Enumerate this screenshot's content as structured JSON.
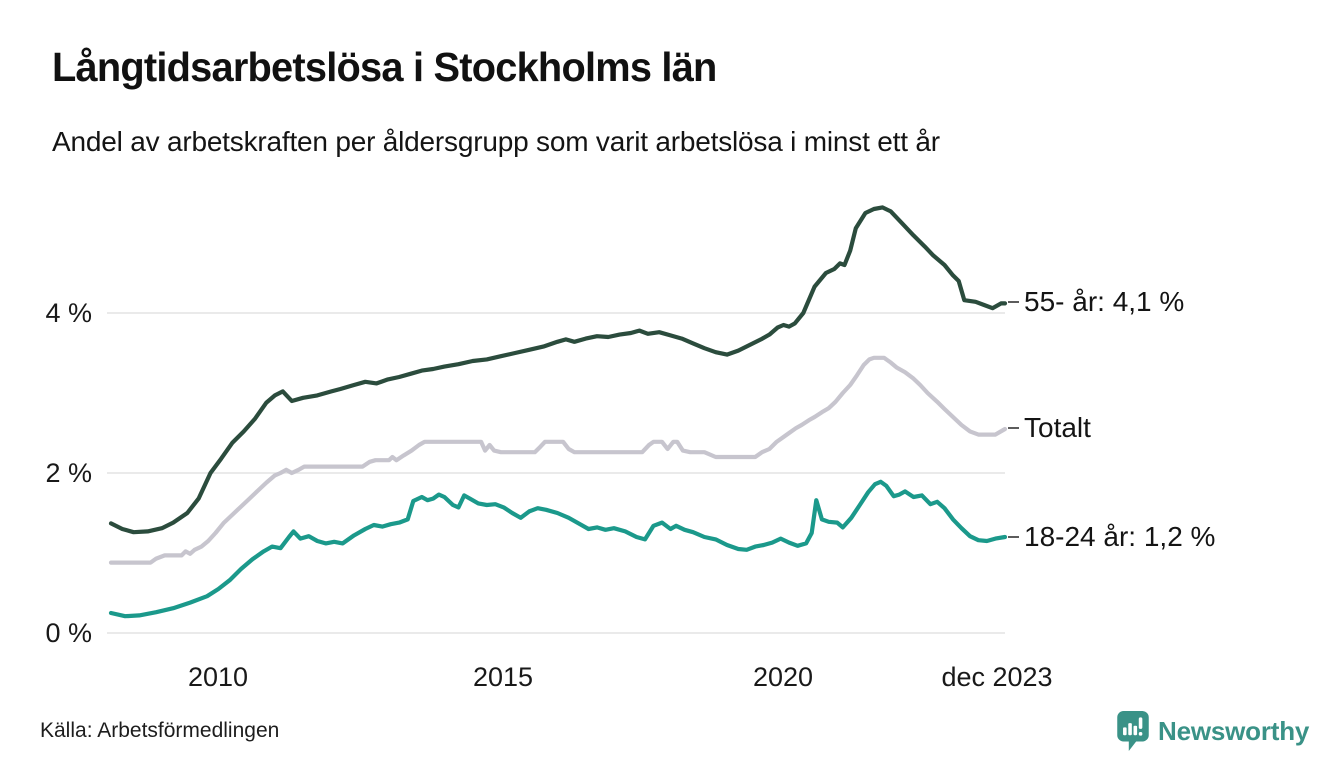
{
  "header": {
    "title": "Långtidsarbetslösa i Stockholms län",
    "subtitle": "Andel av arbetskraften per åldersgrupp som varit arbetslösa i minst ett år"
  },
  "footer": {
    "source": "Källa: Arbetsförmedlingen",
    "brand_name": "Newsworthy"
  },
  "colors": {
    "series_55": "#2b4c3d",
    "series_total": "#c7c5ce",
    "series_18_24": "#1b998b",
    "gridline": "#e3e3e3",
    "brand_teal": "#3a9287",
    "text": "#141414"
  },
  "icons": {
    "brand_logo": "bar-chart-speech-bubble-icon"
  },
  "chart_data": {
    "type": "line",
    "title": "Långtidsarbetslösa i Stockholms län",
    "subtitle": "Andel av arbetskraften per åldersgrupp som varit arbetslösa i minst ett år",
    "unit": "%",
    "grid": true,
    "legend_position": "right-end-labels",
    "x_axis": {
      "range": [
        2008.1,
        2023.92
      ],
      "ticks": [
        {
          "label": "2010",
          "t": 2010
        },
        {
          "label": "2015",
          "t": 2015
        },
        {
          "label": "2020",
          "t": 2020
        },
        {
          "label": "dec 2023",
          "t": 2023.92
        }
      ]
    },
    "y_axis": {
      "range": [
        0,
        5.6
      ],
      "ticks": [
        {
          "label": "0 %",
          "v": 0
        },
        {
          "label": "2 %",
          "v": 2
        },
        {
          "label": "4 %",
          "v": 4
        }
      ]
    },
    "series": [
      {
        "name": "55- år",
        "end_label": "55- år: 4,1 %",
        "end_value": "4,1 %",
        "color": "#2b4c3d",
        "points": [
          [
            2008.1,
            1.37
          ],
          [
            2008.3,
            1.3
          ],
          [
            2008.5,
            1.26
          ],
          [
            2008.75,
            1.27
          ],
          [
            2009.0,
            1.31
          ],
          [
            2009.2,
            1.38
          ],
          [
            2009.45,
            1.5
          ],
          [
            2009.65,
            1.68
          ],
          [
            2009.86,
            2.0
          ],
          [
            2010.05,
            2.18
          ],
          [
            2010.25,
            2.38
          ],
          [
            2010.45,
            2.52
          ],
          [
            2010.65,
            2.68
          ],
          [
            2010.85,
            2.88
          ],
          [
            2011.0,
            2.97
          ],
          [
            2011.14,
            3.02
          ],
          [
            2011.3,
            2.9
          ],
          [
            2011.5,
            2.94
          ],
          [
            2011.75,
            2.97
          ],
          [
            2012.0,
            3.02
          ],
          [
            2012.16,
            3.05
          ],
          [
            2012.4,
            3.1
          ],
          [
            2012.6,
            3.14
          ],
          [
            2012.8,
            3.12
          ],
          [
            2013.0,
            3.17
          ],
          [
            2013.2,
            3.2
          ],
          [
            2013.4,
            3.24
          ],
          [
            2013.6,
            3.28
          ],
          [
            2013.8,
            3.3
          ],
          [
            2014.0,
            3.33
          ],
          [
            2014.25,
            3.36
          ],
          [
            2014.5,
            3.4
          ],
          [
            2014.75,
            3.42
          ],
          [
            2015.0,
            3.46
          ],
          [
            2015.25,
            3.5
          ],
          [
            2015.5,
            3.54
          ],
          [
            2015.75,
            3.58
          ],
          [
            2016.0,
            3.64
          ],
          [
            2016.15,
            3.67
          ],
          [
            2016.3,
            3.64
          ],
          [
            2016.5,
            3.68
          ],
          [
            2016.7,
            3.71
          ],
          [
            2016.9,
            3.7
          ],
          [
            2017.1,
            3.73
          ],
          [
            2017.3,
            3.75
          ],
          [
            2017.45,
            3.78
          ],
          [
            2017.6,
            3.74
          ],
          [
            2017.8,
            3.76
          ],
          [
            2018.0,
            3.72
          ],
          [
            2018.2,
            3.68
          ],
          [
            2018.4,
            3.62
          ],
          [
            2018.6,
            3.56
          ],
          [
            2018.8,
            3.51
          ],
          [
            2019.0,
            3.48
          ],
          [
            2019.2,
            3.53
          ],
          [
            2019.4,
            3.6
          ],
          [
            2019.6,
            3.67
          ],
          [
            2019.75,
            3.73
          ],
          [
            2019.9,
            3.82
          ],
          [
            2020.0,
            3.85
          ],
          [
            2020.1,
            3.83
          ],
          [
            2020.2,
            3.87
          ],
          [
            2020.35,
            4.0
          ],
          [
            2020.55,
            4.33
          ],
          [
            2020.75,
            4.5
          ],
          [
            2020.9,
            4.55
          ],
          [
            2021.0,
            4.62
          ],
          [
            2021.08,
            4.6
          ],
          [
            2021.18,
            4.78
          ],
          [
            2021.28,
            5.06
          ],
          [
            2021.45,
            5.25
          ],
          [
            2021.6,
            5.3
          ],
          [
            2021.75,
            5.32
          ],
          [
            2021.9,
            5.27
          ],
          [
            2022.1,
            5.12
          ],
          [
            2022.3,
            4.97
          ],
          [
            2022.5,
            4.83
          ],
          [
            2022.65,
            4.72
          ],
          [
            2022.85,
            4.6
          ],
          [
            2023.0,
            4.47
          ],
          [
            2023.1,
            4.4
          ],
          [
            2023.2,
            4.16
          ],
          [
            2023.4,
            4.14
          ],
          [
            2023.55,
            4.1
          ],
          [
            2023.7,
            4.06
          ],
          [
            2023.85,
            4.12
          ],
          [
            2023.92,
            4.12
          ]
        ]
      },
      {
        "name": "Totalt",
        "end_label": "Totalt",
        "end_value": "",
        "color": "#c7c5ce",
        "points": [
          [
            2008.1,
            0.88
          ],
          [
            2008.8,
            0.88
          ],
          [
            2008.9,
            0.93
          ],
          [
            2009.05,
            0.97
          ],
          [
            2009.35,
            0.97
          ],
          [
            2009.42,
            1.02
          ],
          [
            2009.5,
            0.99
          ],
          [
            2009.58,
            1.04
          ],
          [
            2009.7,
            1.08
          ],
          [
            2009.82,
            1.15
          ],
          [
            2009.95,
            1.25
          ],
          [
            2010.1,
            1.38
          ],
          [
            2010.25,
            1.48
          ],
          [
            2010.4,
            1.58
          ],
          [
            2010.55,
            1.68
          ],
          [
            2010.7,
            1.78
          ],
          [
            2010.85,
            1.88
          ],
          [
            2011.0,
            1.97
          ],
          [
            2011.1,
            2.0
          ],
          [
            2011.2,
            2.04
          ],
          [
            2011.3,
            2.0
          ],
          [
            2011.42,
            2.04
          ],
          [
            2011.52,
            2.08
          ],
          [
            2012.55,
            2.08
          ],
          [
            2012.68,
            2.14
          ],
          [
            2012.78,
            2.16
          ],
          [
            2013.02,
            2.16
          ],
          [
            2013.08,
            2.2
          ],
          [
            2013.15,
            2.16
          ],
          [
            2013.28,
            2.22
          ],
          [
            2013.42,
            2.28
          ],
          [
            2013.55,
            2.35
          ],
          [
            2013.65,
            2.39
          ],
          [
            2014.65,
            2.39
          ],
          [
            2014.72,
            2.28
          ],
          [
            2014.8,
            2.35
          ],
          [
            2014.88,
            2.28
          ],
          [
            2015.0,
            2.26
          ],
          [
            2015.6,
            2.26
          ],
          [
            2015.7,
            2.33
          ],
          [
            2015.78,
            2.39
          ],
          [
            2016.1,
            2.39
          ],
          [
            2016.2,
            2.3
          ],
          [
            2016.3,
            2.26
          ],
          [
            2017.5,
            2.26
          ],
          [
            2017.62,
            2.35
          ],
          [
            2017.7,
            2.39
          ],
          [
            2017.85,
            2.39
          ],
          [
            2017.95,
            2.3
          ],
          [
            2018.05,
            2.39
          ],
          [
            2018.12,
            2.39
          ],
          [
            2018.22,
            2.28
          ],
          [
            2018.35,
            2.26
          ],
          [
            2018.6,
            2.26
          ],
          [
            2018.8,
            2.2
          ],
          [
            2019.5,
            2.2
          ],
          [
            2019.62,
            2.26
          ],
          [
            2019.75,
            2.3
          ],
          [
            2019.88,
            2.39
          ],
          [
            2020.0,
            2.45
          ],
          [
            2020.1,
            2.5
          ],
          [
            2020.22,
            2.56
          ],
          [
            2020.32,
            2.6
          ],
          [
            2020.45,
            2.66
          ],
          [
            2020.55,
            2.7
          ],
          [
            2020.68,
            2.76
          ],
          [
            2020.8,
            2.81
          ],
          [
            2020.92,
            2.89
          ],
          [
            2021.05,
            3.0
          ],
          [
            2021.18,
            3.1
          ],
          [
            2021.3,
            3.22
          ],
          [
            2021.42,
            3.35
          ],
          [
            2021.52,
            3.42
          ],
          [
            2021.6,
            3.44
          ],
          [
            2021.78,
            3.44
          ],
          [
            2021.9,
            3.38
          ],
          [
            2022.0,
            3.32
          ],
          [
            2022.15,
            3.26
          ],
          [
            2022.3,
            3.18
          ],
          [
            2022.42,
            3.1
          ],
          [
            2022.55,
            3.0
          ],
          [
            2022.72,
            2.89
          ],
          [
            2022.85,
            2.8
          ],
          [
            2023.0,
            2.7
          ],
          [
            2023.15,
            2.6
          ],
          [
            2023.3,
            2.52
          ],
          [
            2023.45,
            2.48
          ],
          [
            2023.75,
            2.48
          ],
          [
            2023.92,
            2.55
          ]
        ]
      },
      {
        "name": "18-24 år",
        "end_label": "18-24 år: 1,2 %",
        "end_value": "1,2 %",
        "color": "#1b998b",
        "points": [
          [
            2008.1,
            0.25
          ],
          [
            2008.35,
            0.21
          ],
          [
            2008.6,
            0.22
          ],
          [
            2008.9,
            0.26
          ],
          [
            2009.2,
            0.31
          ],
          [
            2009.5,
            0.38
          ],
          [
            2009.8,
            0.46
          ],
          [
            2010.0,
            0.55
          ],
          [
            2010.2,
            0.66
          ],
          [
            2010.4,
            0.8
          ],
          [
            2010.6,
            0.92
          ],
          [
            2010.8,
            1.02
          ],
          [
            2010.95,
            1.08
          ],
          [
            2011.1,
            1.06
          ],
          [
            2011.25,
            1.2
          ],
          [
            2011.33,
            1.27
          ],
          [
            2011.45,
            1.18
          ],
          [
            2011.6,
            1.21
          ],
          [
            2011.75,
            1.15
          ],
          [
            2011.9,
            1.12
          ],
          [
            2012.05,
            1.14
          ],
          [
            2012.2,
            1.12
          ],
          [
            2012.4,
            1.22
          ],
          [
            2012.6,
            1.3
          ],
          [
            2012.75,
            1.35
          ],
          [
            2012.9,
            1.33
          ],
          [
            2013.05,
            1.36
          ],
          [
            2013.2,
            1.38
          ],
          [
            2013.35,
            1.42
          ],
          [
            2013.45,
            1.65
          ],
          [
            2013.6,
            1.7
          ],
          [
            2013.7,
            1.66
          ],
          [
            2013.8,
            1.68
          ],
          [
            2013.9,
            1.73
          ],
          [
            2014.0,
            1.7
          ],
          [
            2014.15,
            1.6
          ],
          [
            2014.25,
            1.57
          ],
          [
            2014.35,
            1.72
          ],
          [
            2014.45,
            1.68
          ],
          [
            2014.6,
            1.62
          ],
          [
            2014.75,
            1.6
          ],
          [
            2014.9,
            1.61
          ],
          [
            2015.05,
            1.57
          ],
          [
            2015.2,
            1.5
          ],
          [
            2015.35,
            1.44
          ],
          [
            2015.5,
            1.52
          ],
          [
            2015.65,
            1.56
          ],
          [
            2015.8,
            1.54
          ],
          [
            2016.0,
            1.5
          ],
          [
            2016.2,
            1.44
          ],
          [
            2016.4,
            1.36
          ],
          [
            2016.55,
            1.3
          ],
          [
            2016.7,
            1.32
          ],
          [
            2016.85,
            1.29
          ],
          [
            2017.0,
            1.31
          ],
          [
            2017.2,
            1.27
          ],
          [
            2017.4,
            1.2
          ],
          [
            2017.55,
            1.17
          ],
          [
            2017.7,
            1.34
          ],
          [
            2017.85,
            1.38
          ],
          [
            2018.0,
            1.3
          ],
          [
            2018.1,
            1.34
          ],
          [
            2018.25,
            1.29
          ],
          [
            2018.4,
            1.26
          ],
          [
            2018.6,
            1.2
          ],
          [
            2018.8,
            1.17
          ],
          [
            2019.0,
            1.1
          ],
          [
            2019.2,
            1.05
          ],
          [
            2019.35,
            1.04
          ],
          [
            2019.5,
            1.08
          ],
          [
            2019.65,
            1.1
          ],
          [
            2019.8,
            1.13
          ],
          [
            2019.95,
            1.18
          ],
          [
            2020.1,
            1.13
          ],
          [
            2020.25,
            1.09
          ],
          [
            2020.4,
            1.12
          ],
          [
            2020.5,
            1.25
          ],
          [
            2020.58,
            1.66
          ],
          [
            2020.68,
            1.42
          ],
          [
            2020.8,
            1.39
          ],
          [
            2020.95,
            1.38
          ],
          [
            2021.05,
            1.32
          ],
          [
            2021.2,
            1.44
          ],
          [
            2021.35,
            1.6
          ],
          [
            2021.5,
            1.76
          ],
          [
            2021.62,
            1.86
          ],
          [
            2021.72,
            1.89
          ],
          [
            2021.82,
            1.84
          ],
          [
            2021.95,
            1.71
          ],
          [
            2022.05,
            1.73
          ],
          [
            2022.15,
            1.77
          ],
          [
            2022.3,
            1.7
          ],
          [
            2022.45,
            1.72
          ],
          [
            2022.6,
            1.61
          ],
          [
            2022.72,
            1.64
          ],
          [
            2022.85,
            1.56
          ],
          [
            2023.0,
            1.42
          ],
          [
            2023.15,
            1.31
          ],
          [
            2023.3,
            1.21
          ],
          [
            2023.45,
            1.16
          ],
          [
            2023.6,
            1.15
          ],
          [
            2023.75,
            1.18
          ],
          [
            2023.92,
            1.2
          ]
        ]
      }
    ]
  }
}
